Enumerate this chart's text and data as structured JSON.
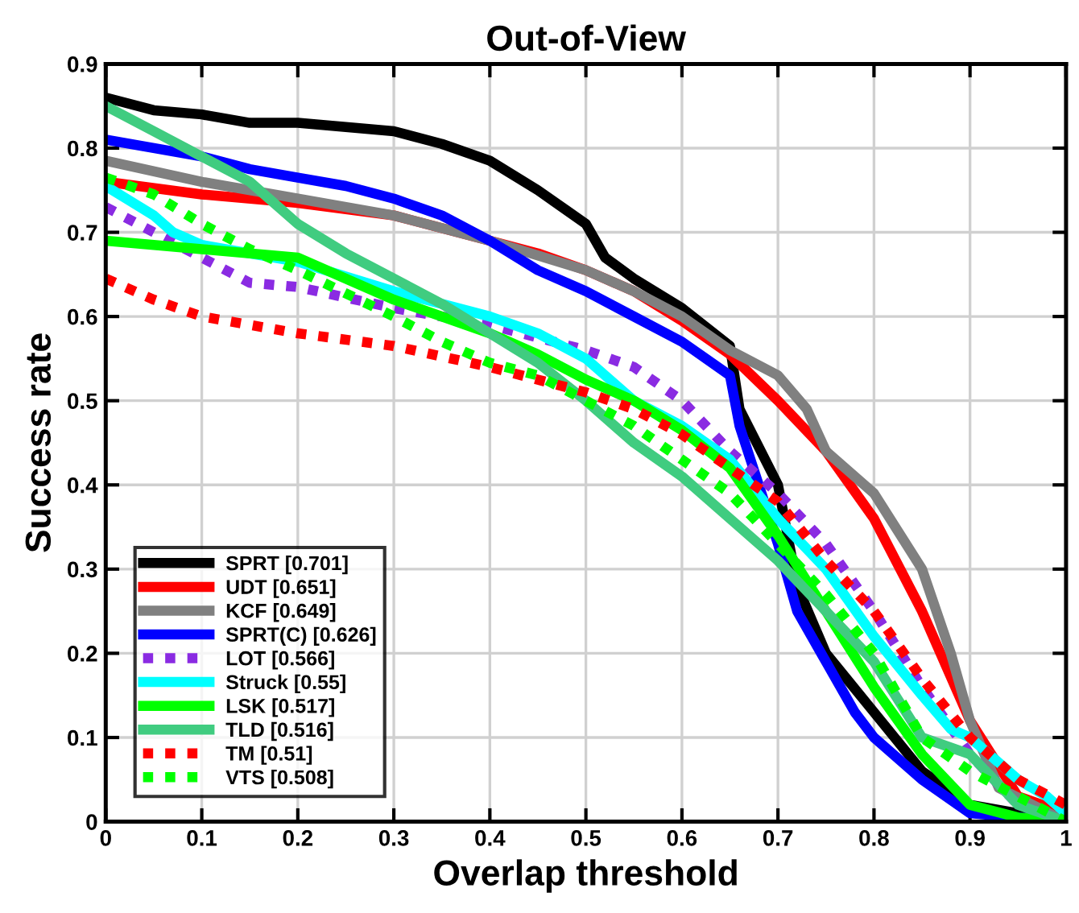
{
  "chart_data": {
    "type": "line",
    "title": "Out-of-View",
    "xlabel": "Overlap threshold",
    "ylabel": "Success rate",
    "xlim": [
      0,
      1
    ],
    "ylim": [
      0,
      0.9
    ],
    "xticks": [
      0,
      0.1,
      0.2,
      0.3,
      0.4,
      0.5,
      0.6,
      0.7,
      0.8,
      0.9,
      1
    ],
    "yticks": [
      0,
      0.1,
      0.2,
      0.3,
      0.4,
      0.5,
      0.6,
      0.7,
      0.8,
      0.9
    ],
    "grid": true,
    "legend": "bottom left",
    "marker": "none",
    "series": [
      {
        "name": "SPRT [0.701]",
        "color": "#000000",
        "line_style": "solid",
        "x": [
          0,
          0.05,
          0.1,
          0.15,
          0.2,
          0.25,
          0.3,
          0.35,
          0.4,
          0.45,
          0.5,
          0.52,
          0.55,
          0.6,
          0.65,
          0.66,
          0.7,
          0.72,
          0.75,
          0.8,
          0.85,
          0.9,
          0.95,
          1
        ],
        "values": [
          0.86,
          0.845,
          0.84,
          0.83,
          0.83,
          0.825,
          0.82,
          0.805,
          0.785,
          0.75,
          0.71,
          0.67,
          0.645,
          0.61,
          0.565,
          0.49,
          0.4,
          0.28,
          0.2,
          0.13,
          0.06,
          0.02,
          0.01,
          0
        ]
      },
      {
        "name": "UDT [0.651]",
        "color": "#ff0000",
        "line_style": "solid",
        "x": [
          0,
          0.1,
          0.2,
          0.3,
          0.4,
          0.45,
          0.5,
          0.55,
          0.6,
          0.65,
          0.7,
          0.75,
          0.8,
          0.85,
          0.9,
          0.95,
          1
        ],
        "values": [
          0.76,
          0.745,
          0.735,
          0.72,
          0.69,
          0.675,
          0.655,
          0.63,
          0.595,
          0.555,
          0.5,
          0.44,
          0.36,
          0.25,
          0.12,
          0.03,
          0.01
        ]
      },
      {
        "name": "KCF [0.649]",
        "color": "#808080",
        "line_style": "solid",
        "x": [
          0,
          0.1,
          0.2,
          0.3,
          0.4,
          0.5,
          0.55,
          0.6,
          0.65,
          0.7,
          0.73,
          0.75,
          0.8,
          0.85,
          0.88,
          0.9,
          0.93,
          1
        ],
        "values": [
          0.785,
          0.76,
          0.74,
          0.72,
          0.69,
          0.655,
          0.63,
          0.6,
          0.56,
          0.53,
          0.49,
          0.44,
          0.39,
          0.3,
          0.2,
          0.12,
          0.04,
          0
        ]
      },
      {
        "name": "SPRT(C) [0.626]",
        "color": "#0000ff",
        "line_style": "solid",
        "x": [
          0,
          0.05,
          0.1,
          0.15,
          0.2,
          0.25,
          0.3,
          0.35,
          0.4,
          0.45,
          0.5,
          0.55,
          0.6,
          0.65,
          0.66,
          0.7,
          0.72,
          0.75,
          0.78,
          0.8,
          0.85,
          0.9,
          1
        ],
        "values": [
          0.81,
          0.8,
          0.79,
          0.775,
          0.765,
          0.755,
          0.74,
          0.72,
          0.69,
          0.655,
          0.63,
          0.6,
          0.57,
          0.53,
          0.47,
          0.33,
          0.25,
          0.19,
          0.13,
          0.1,
          0.05,
          0.01,
          0
        ]
      },
      {
        "name": "LOT [0.566]",
        "color": "#8a2be2",
        "line_style": "dotted",
        "x": [
          0,
          0.05,
          0.1,
          0.15,
          0.2,
          0.3,
          0.4,
          0.5,
          0.55,
          0.6,
          0.65,
          0.7,
          0.75,
          0.8,
          0.85,
          0.9,
          0.95,
          1
        ],
        "values": [
          0.73,
          0.7,
          0.67,
          0.64,
          0.635,
          0.61,
          0.59,
          0.56,
          0.54,
          0.5,
          0.44,
          0.39,
          0.33,
          0.25,
          0.16,
          0.08,
          0.02,
          0
        ]
      },
      {
        "name": "Struck [0.55]",
        "color": "#00ffff",
        "line_style": "solid",
        "x": [
          0,
          0.05,
          0.07,
          0.1,
          0.2,
          0.3,
          0.4,
          0.45,
          0.5,
          0.55,
          0.6,
          0.65,
          0.7,
          0.75,
          0.8,
          0.85,
          0.88,
          0.9,
          0.95,
          0.98,
          1
        ],
        "values": [
          0.755,
          0.72,
          0.7,
          0.685,
          0.665,
          0.63,
          0.6,
          0.58,
          0.55,
          0.5,
          0.47,
          0.43,
          0.36,
          0.3,
          0.22,
          0.15,
          0.11,
          0.1,
          0.05,
          0.03,
          0.01
        ]
      },
      {
        "name": "LSK [0.517]",
        "color": "#00ff00",
        "line_style": "solid",
        "x": [
          0,
          0.1,
          0.2,
          0.3,
          0.4,
          0.45,
          0.5,
          0.55,
          0.6,
          0.65,
          0.7,
          0.75,
          0.8,
          0.85,
          0.9,
          0.95,
          1
        ],
        "values": [
          0.69,
          0.68,
          0.67,
          0.62,
          0.58,
          0.555,
          0.525,
          0.5,
          0.465,
          0.42,
          0.34,
          0.25,
          0.16,
          0.08,
          0.02,
          0.005,
          0
        ]
      },
      {
        "name": "TLD [0.516]",
        "color": "#40cc80",
        "line_style": "solid",
        "x": [
          0,
          0.05,
          0.1,
          0.15,
          0.2,
          0.25,
          0.3,
          0.35,
          0.4,
          0.45,
          0.5,
          0.55,
          0.6,
          0.65,
          0.7,
          0.75,
          0.8,
          0.85,
          0.9,
          0.95,
          1
        ],
        "values": [
          0.85,
          0.82,
          0.79,
          0.76,
          0.71,
          0.675,
          0.645,
          0.615,
          0.58,
          0.545,
          0.5,
          0.45,
          0.41,
          0.36,
          0.31,
          0.25,
          0.19,
          0.1,
          0.08,
          0.02,
          0
        ]
      },
      {
        "name": "TM [0.51]",
        "color": "#ff0000",
        "line_style": "dotted",
        "x": [
          0,
          0.05,
          0.1,
          0.2,
          0.3,
          0.4,
          0.5,
          0.55,
          0.6,
          0.65,
          0.7,
          0.75,
          0.8,
          0.85,
          0.9,
          0.95,
          1
        ],
        "values": [
          0.645,
          0.62,
          0.6,
          0.58,
          0.565,
          0.54,
          0.51,
          0.49,
          0.46,
          0.42,
          0.38,
          0.31,
          0.25,
          0.17,
          0.1,
          0.05,
          0.02
        ]
      },
      {
        "name": "VTS [0.508]",
        "color": "#00ff00",
        "line_style": "dotted",
        "x": [
          0,
          0.05,
          0.1,
          0.15,
          0.2,
          0.3,
          0.35,
          0.4,
          0.45,
          0.5,
          0.55,
          0.6,
          0.65,
          0.7,
          0.75,
          0.8,
          0.85,
          0.9,
          0.95,
          1
        ],
        "values": [
          0.765,
          0.745,
          0.71,
          0.68,
          0.655,
          0.6,
          0.57,
          0.545,
          0.53,
          0.5,
          0.47,
          0.43,
          0.39,
          0.33,
          0.27,
          0.2,
          0.1,
          0.06,
          0.03,
          0
        ]
      }
    ]
  }
}
